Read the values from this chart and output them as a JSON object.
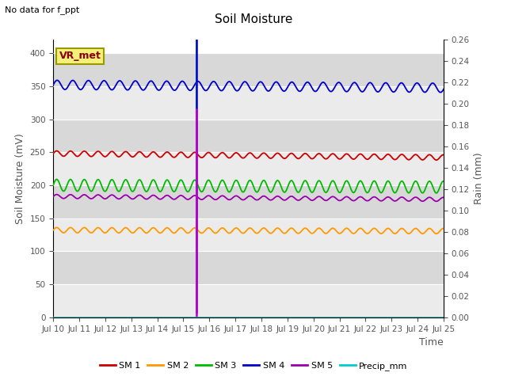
{
  "title": "Soil Moisture",
  "top_left_text": "No data for f_ppt",
  "xlabel": "Time",
  "ylabel_left": "Soil Moisture (mV)",
  "ylabel_right": "Rain (mm)",
  "ylim_left": [
    0,
    420
  ],
  "ylim_right": [
    0.0,
    0.26
  ],
  "yticks_left": [
    0,
    50,
    100,
    150,
    200,
    250,
    300,
    350,
    400
  ],
  "yticks_right": [
    0.0,
    0.02,
    0.04,
    0.06,
    0.08,
    0.1,
    0.12,
    0.14,
    0.16,
    0.18,
    0.2,
    0.22,
    0.24,
    0.26
  ],
  "x_tick_labels": [
    "Jul 10",
    "Jul 11",
    "Jul 12",
    "Jul 13",
    "Jul 14",
    "Jul 15",
    "Jul 16",
    "Jul 17",
    "Jul 18",
    "Jul 19",
    "Jul 20",
    "Jul 21",
    "Jul 22",
    "Jul 23",
    "Jul 24",
    "Jul 25"
  ],
  "background_color_light": "#ebebeb",
  "background_color_dark": "#d8d8d8",
  "vr_met_box_color": "#f5f07a",
  "vr_met_text_color": "#880000",
  "vr_met_border_color": "#999900",
  "series": [
    {
      "name": "SM 1",
      "color": "#cc0000",
      "base": 248,
      "amplitude": 4,
      "freq": 0.85,
      "trend": -0.4
    },
    {
      "name": "SM 2",
      "color": "#ff9900",
      "base": 132,
      "amplitude": 4,
      "freq": 0.85,
      "trend": -0.1
    },
    {
      "name": "SM 3",
      "color": "#00bb00",
      "base": 200,
      "amplitude": 9,
      "freq": 0.85,
      "trend": -0.2
    },
    {
      "name": "SM 4",
      "color": "#0000cc",
      "base": 352,
      "amplitude": 7,
      "freq": 0.75,
      "trend": -0.3
    },
    {
      "name": "SM 5",
      "color": "#9900aa",
      "base": 183,
      "amplitude": 3,
      "freq": 0.85,
      "trend": -0.3
    }
  ],
  "precip_color": "#00cccc",
  "vline_x": 5.5,
  "vline_color_top": "#00cccc",
  "vline_color_blue": "#0000cc",
  "vline_color_magenta": "#cc00cc",
  "n_points": 500,
  "n_days": 15,
  "grid_color": "#ffffff",
  "tick_color": "#555555",
  "tick_fontsize": 7.5,
  "ylabel_fontsize": 9,
  "title_fontsize": 11,
  "legend_fontsize": 8
}
